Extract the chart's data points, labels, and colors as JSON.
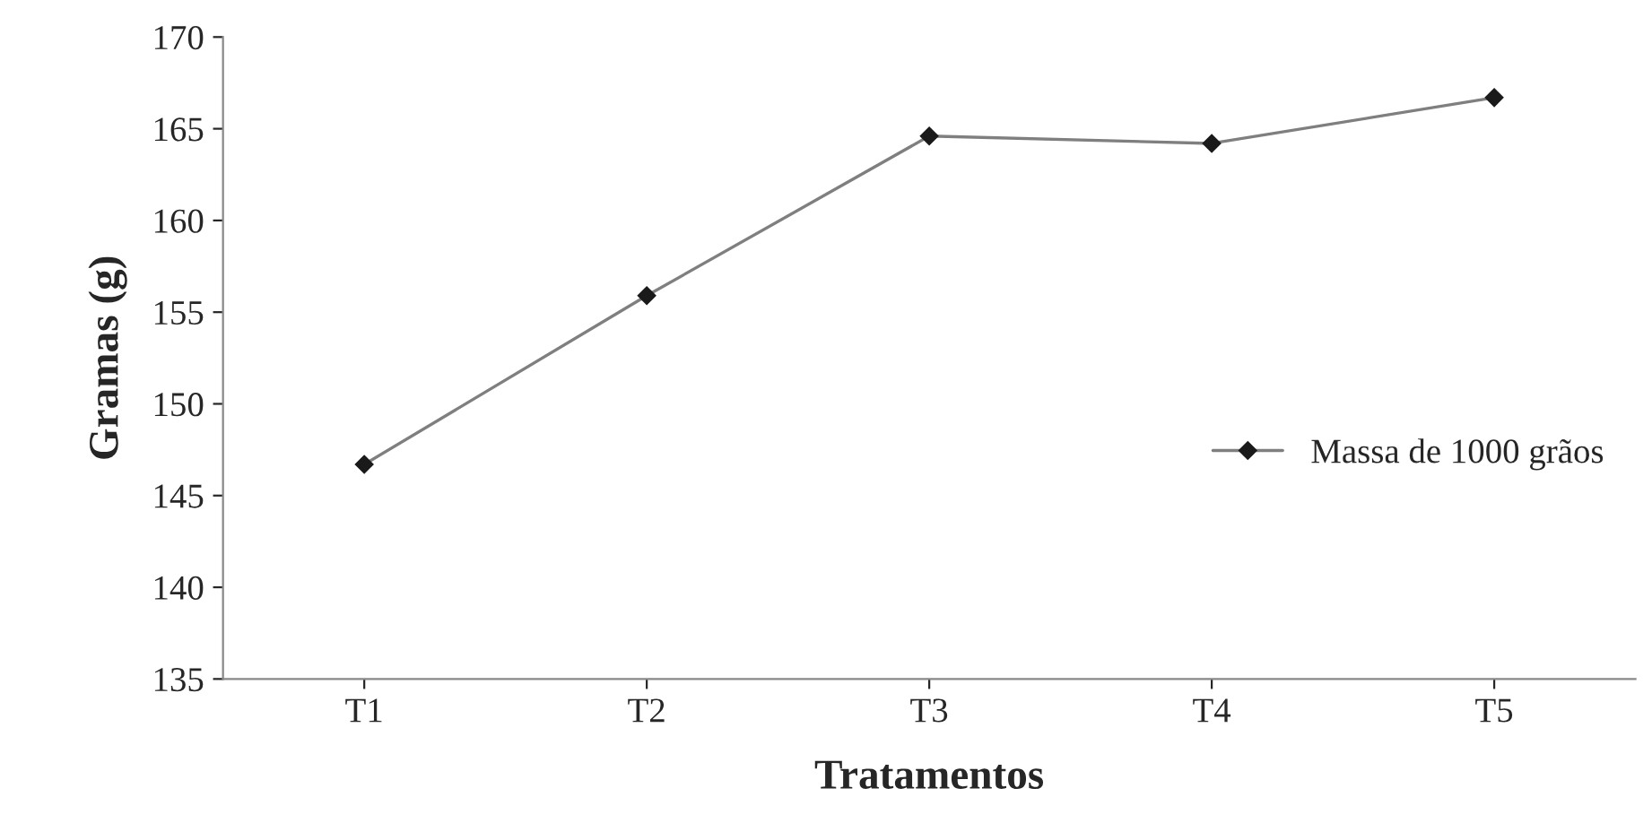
{
  "chart_data": {
    "type": "line",
    "xlabel": "Tratamentos",
    "ylabel": "Gramas (g)",
    "categories": [
      "T1",
      "T2",
      "T3",
      "T4",
      "T5"
    ],
    "series": [
      {
        "name": "Massa de 1000 grãos",
        "color": "#7f7f7f",
        "values": [
          146.7,
          155.9,
          164.6,
          164.2,
          166.7
        ]
      }
    ],
    "ylim": [
      135,
      170
    ],
    "yticks": [
      135,
      140,
      145,
      150,
      155,
      160,
      165,
      170
    ],
    "marker": "diamond",
    "line_style": "solid",
    "legend": "right",
    "grid": false
  }
}
